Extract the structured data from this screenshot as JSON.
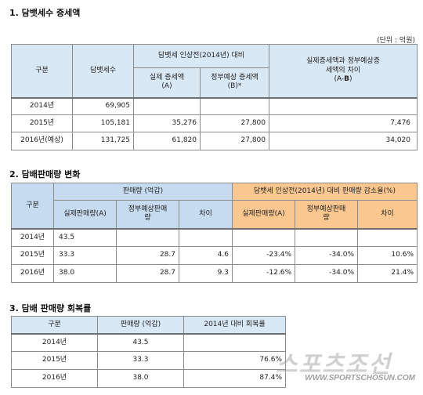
{
  "section1": {
    "title": "1. 담뱃세수 증세액",
    "unit": "(단위 : 억원)",
    "headers": {
      "category": "구분",
      "tax": "담뱃세수",
      "group": "담뱃세 인상전(2014년) 대비",
      "actual": "실제 증세액\n(A)",
      "expected": "정부예상 증세액\n(B)*",
      "diff_prefix": "실제증세액과 정부예상증\n세액의 차이\n(A-",
      "diff_bold": "B",
      "diff_suffix": ")"
    },
    "rows": [
      {
        "label": "2014년",
        "tax": "69,905",
        "actual": "",
        "expected": "",
        "diff": ""
      },
      {
        "label": "2015년",
        "tax": "105,181",
        "actual": "35,276",
        "expected": "27,800",
        "diff": "7,476"
      },
      {
        "label": "2016년(예상)",
        "tax": "131,725",
        "actual": "61,820",
        "expected": "27,800",
        "diff": "34,020"
      }
    ]
  },
  "section2": {
    "title": "2. 담배판매량 변화",
    "headers": {
      "category": "구분",
      "volume_group": "판매량 (억갑)",
      "reduction_group": "담뱃세 인상전(2014년) 대비 판매량 감소율(%)",
      "actual": "실제판매량(A)",
      "expected": "정부예상판매\n량",
      "diff": "차이",
      "r_actual": "실제판매량(A)",
      "r_expected": "정부예상판매\n량",
      "r_diff": "차이"
    },
    "rows": [
      {
        "label": "2014년",
        "actual": "43.5",
        "expected": "",
        "diff": "",
        "r_actual": "",
        "r_expected": "",
        "r_diff": ""
      },
      {
        "label": "2015년",
        "actual": "33.3",
        "expected": "28.7",
        "diff": "4.6",
        "r_actual": "-23.4%",
        "r_expected": "-34.0%",
        "r_diff": "10.6%"
      },
      {
        "label": "2016년",
        "actual": "38.0",
        "expected": "28.7",
        "diff": "9.3",
        "r_actual": "-12.6%",
        "r_expected": "-34.0%",
        "r_diff": "21.4%"
      }
    ]
  },
  "section3": {
    "title": "3. 담배 판매량 회복률",
    "headers": {
      "category": "구분",
      "volume": "판매량 (억갑)",
      "recovery": "2014년 대비 회복률"
    },
    "rows": [
      {
        "label": "2014년",
        "volume": "43.5",
        "recovery": ""
      },
      {
        "label": "2015년",
        "volume": "33.3",
        "recovery": "76.6%"
      },
      {
        "label": "2016년",
        "volume": "38.0",
        "recovery": "87.4%"
      }
    ]
  },
  "watermark": {
    "logo": "스포츠조선",
    "url": "WWW.SPORTSCHOSUN.COM"
  },
  "colors": {
    "blue_header": "#d9e8f5",
    "orange_header": "#f9c78f"
  }
}
